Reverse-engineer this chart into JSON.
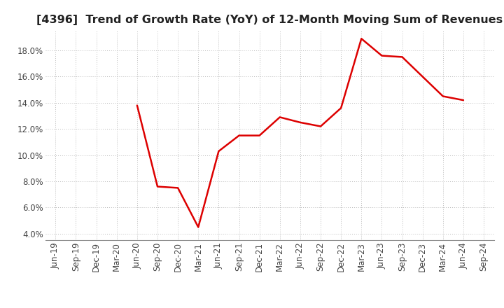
{
  "title": "[4396]  Trend of Growth Rate (YoY) of 12-Month Moving Sum of Revenues",
  "x_labels": [
    "Jun-19",
    "Sep-19",
    "Dec-19",
    "Mar-20",
    "Jun-20",
    "Sep-20",
    "Dec-20",
    "Mar-21",
    "Jun-21",
    "Sep-21",
    "Dec-21",
    "Mar-22",
    "Jun-22",
    "Sep-22",
    "Dec-22",
    "Mar-23",
    "Jun-23",
    "Sep-23",
    "Dec-23",
    "Mar-24",
    "Jun-24",
    "Sep-24"
  ],
  "y_values": [
    null,
    null,
    null,
    null,
    0.138,
    0.076,
    0.075,
    0.045,
    0.103,
    0.115,
    0.115,
    0.129,
    0.125,
    0.122,
    0.136,
    0.189,
    0.176,
    0.175,
    0.16,
    0.145,
    0.142,
    null
  ],
  "line_color": "#DD0000",
  "background_color": "#FFFFFF",
  "grid_color": "#BBBBBB",
  "ylim_min": 0.035,
  "ylim_max": 0.195,
  "yticks": [
    0.04,
    0.06,
    0.08,
    0.1,
    0.12,
    0.14,
    0.16,
    0.18
  ],
  "title_fontsize": 11.5,
  "tick_fontsize": 8.5
}
